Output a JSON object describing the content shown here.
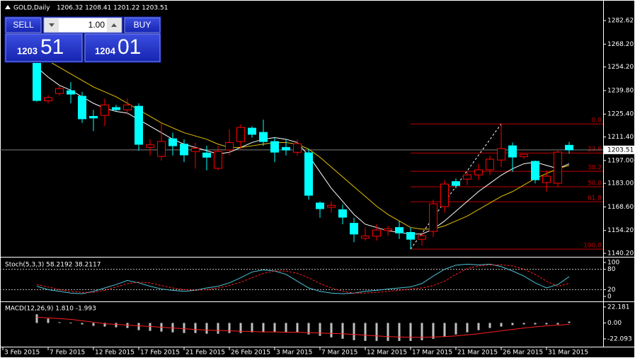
{
  "header": {
    "symbol": "GOLD,Daily",
    "ohlc": "1206.32 1208.41 1201.22 1203.51"
  },
  "trade_panel": {
    "sell": "SELL",
    "lots": "1.00",
    "buy": "BUY",
    "bid_big": "1203",
    "bid_small": "51",
    "ask_big": "1204",
    "ask_small": "01"
  },
  "chart_data": [
    {
      "type": "candlestick",
      "open": [
        1258.4,
        1233.5,
        1238,
        1239.7,
        1236.3,
        1224,
        1224.6,
        1229.4,
        1228,
        1230.2,
        1205,
        1199.5,
        1210.3,
        1207,
        1202.5,
        1201.6,
        1192.2,
        1203.4,
        1208.6,
        1216.8,
        1214.2,
        1208.6,
        1205,
        1202,
        1201.7,
        1171,
        1168.4,
        1166.9,
        1158.6,
        1149.4,
        1150.7,
        1154.1,
        1156,
        1153,
        1148.8,
        1153.6,
        1168.8,
        1184.1,
        1185.6,
        1188.2,
        1191.3,
        1197.3,
        1206,
        1199.4,
        1196.5,
        1183.5,
        1183.1,
        1206.32
      ],
      "high": [
        1260,
        1237,
        1243,
        1245,
        1239,
        1228,
        1235,
        1231,
        1235,
        1232,
        1210,
        1220,
        1214,
        1210,
        1208,
        1206,
        1206,
        1216,
        1219,
        1218,
        1222,
        1211,
        1210,
        1210,
        1204,
        1172,
        1172,
        1170,
        1162,
        1156,
        1158,
        1157,
        1160,
        1156,
        1153,
        1173,
        1185,
        1186,
        1190,
        1195,
        1200,
        1219.4,
        1208,
        1201,
        1197,
        1191,
        1203,
        1208.41
      ],
      "low": [
        1233,
        1232,
        1237,
        1232,
        1220,
        1215,
        1218,
        1227,
        1225,
        1203,
        1200,
        1197,
        1200,
        1196,
        1192,
        1191,
        1191,
        1200,
        1204,
        1211,
        1206,
        1196,
        1200,
        1200,
        1173,
        1162,
        1165,
        1158,
        1147,
        1148,
        1148,
        1151,
        1149,
        1142.8,
        1145,
        1150,
        1165,
        1180,
        1182,
        1185,
        1188,
        1193,
        1190,
        1198,
        1183,
        1178,
        1181,
        1201.22
      ],
      "close": [
        1233.7,
        1235.5,
        1241,
        1237.6,
        1222.5,
        1223,
        1231,
        1228.1,
        1231,
        1206.9,
        1206.6,
        1208.6,
        1206,
        1200.4,
        1204.5,
        1199,
        1202.5,
        1208,
        1217.2,
        1213,
        1208.6,
        1202.1,
        1203.4,
        1207.3,
        1175.7,
        1167.5,
        1169.6,
        1162.3,
        1152,
        1150.8,
        1154.5,
        1155.2,
        1152.7,
        1148.8,
        1151,
        1170.5,
        1182.6,
        1181.7,
        1188.2,
        1191.3,
        1197.8,
        1204.3,
        1199.1,
        1200.8,
        1185.2,
        1187.4,
        1202.1,
        1203.51
      ],
      "up_color": "#ff0000",
      "down_color": "#00ffff",
      "series": [
        {
          "color": "#ffffff",
          "values": [
            1254,
            1248,
            1243,
            1240,
            1236,
            1232,
            1229,
            1227,
            1226,
            1222,
            1218,
            1214,
            1210,
            1207,
            1205,
            1203,
            1201,
            1202,
            1205,
            1208,
            1210,
            1211,
            1210,
            1208,
            1200,
            1190,
            1180,
            1172,
            1164,
            1158,
            1156,
            1154,
            1153,
            1152,
            1152,
            1155,
            1160,
            1166,
            1172,
            1178,
            1183,
            1188,
            1192,
            1195,
            1196,
            1194,
            1192,
            1195
          ]
        },
        {
          "color": "#e6c200",
          "values": [
            1262,
            1258,
            1254,
            1250,
            1246,
            1242,
            1239,
            1236,
            1232,
            1228,
            1224,
            1220,
            1217,
            1214,
            1212,
            1210,
            1207,
            1205,
            1205,
            1206,
            1207,
            1208,
            1208,
            1207,
            1204,
            1199,
            1193,
            1187,
            1181,
            1175,
            1169,
            1164,
            1160,
            1156,
            1155,
            1155,
            1157,
            1160,
            1163,
            1167,
            1171,
            1175,
            1178,
            1182,
            1186,
            1189,
            1192,
            1194
          ]
        }
      ],
      "ylim": [
        1138.5,
        1292.6
      ],
      "yticks": [
        {
          "value": 1282.62,
          "label": "1282.62"
        },
        {
          "value": 1268.2,
          "label": "1268.20"
        },
        {
          "value": 1254.2,
          "label": "1254.20"
        },
        {
          "value": 1239.8,
          "label": "1239.80"
        },
        {
          "value": 1225.4,
          "label": "1225.40"
        },
        {
          "value": 1211.4,
          "label": "1211.40"
        },
        {
          "value": 1197.0,
          "label": "1197.00"
        },
        {
          "value": 1183.0,
          "label": "1183.00"
        },
        {
          "value": 1168.6,
          "label": "1168.60"
        },
        {
          "value": 1154.2,
          "label": "1154.20"
        },
        {
          "value": 1140.2,
          "label": "1140.20"
        }
      ],
      "last_price": 1203.51,
      "fibo": {
        "color": "#c00000",
        "labels": [
          "0.0",
          "23.6",
          "38.2",
          "50.0",
          "61.8",
          "100.0"
        ],
        "prices": [
          1219.4,
          1201.6,
          1190.4,
          1180.9,
          1171.8,
          1142.8
        ]
      }
    },
    {
      "type": "line",
      "title": "Stoch(5,3,3) 58.2192 38.2117",
      "series": [
        {
          "color": "#4fc3d9",
          "dash": false,
          "values": [
            30,
            20,
            15,
            10,
            8,
            15,
            25,
            35,
            47,
            40,
            30,
            22,
            18,
            15,
            18,
            25,
            30,
            40,
            55,
            72,
            78,
            75,
            65,
            45,
            25,
            15,
            10,
            8,
            10,
            15,
            18,
            22,
            25,
            28,
            38,
            60,
            80,
            92,
            95,
            93,
            95,
            88,
            75,
            60,
            40,
            25,
            35,
            58.2192
          ]
        },
        {
          "color": "#ff2020",
          "dash": true,
          "values": [
            35,
            28,
            20,
            15,
            12,
            12,
            18,
            28,
            38,
            42,
            40,
            32,
            25,
            20,
            18,
            20,
            25,
            32,
            42,
            55,
            68,
            75,
            75,
            68,
            55,
            38,
            25,
            15,
            10,
            10,
            12,
            15,
            18,
            22,
            25,
            32,
            45,
            65,
            82,
            90,
            93,
            93,
            90,
            80,
            65,
            45,
            30,
            38.2117
          ]
        }
      ],
      "ylim": [
        0,
        100
      ],
      "yticks": [
        100,
        80,
        20,
        0
      ],
      "levels": [
        80,
        20
      ]
    },
    {
      "type": "bar",
      "title": "MACD(12,26,9) 1.810 -1.993",
      "series": [
        {
          "type": "bar",
          "color": "#c0c0c0",
          "values": [
            12,
            6,
            1,
            0.5,
            -2,
            -4,
            -5,
            -6,
            -7,
            -10,
            -11,
            -12,
            -13,
            -14,
            -14,
            -15,
            -15,
            -14,
            -14,
            -13,
            -13,
            -13,
            -13,
            -13,
            -16,
            -18,
            -20,
            -22,
            -24,
            -25,
            -25,
            -25,
            -25,
            -25,
            -24,
            -22,
            -19,
            -16,
            -13,
            -10,
            -7,
            -5,
            -3,
            -2,
            -2,
            -2,
            -2,
            1.81
          ]
        },
        {
          "type": "line",
          "color": "#ff2020",
          "values": [
            8,
            7,
            6,
            5,
            3,
            1,
            -1,
            -2,
            -3,
            -4,
            -5,
            -6,
            -7,
            -8,
            -9,
            -10,
            -10.5,
            -11,
            -11.5,
            -12,
            -12.5,
            -12.5,
            -13,
            -13,
            -13.5,
            -14,
            -14.5,
            -15,
            -16,
            -17,
            -18,
            -19,
            -19.5,
            -20,
            -20,
            -19.5,
            -19,
            -18,
            -16.5,
            -15,
            -13,
            -11,
            -9,
            -7,
            -5.5,
            -4,
            -3,
            -1.993
          ]
        }
      ],
      "ylim": [
        -33,
        28
      ],
      "yticks": [
        {
          "value": 22.181,
          "label": "22.181"
        },
        {
          "value": 0,
          "label": "0.00"
        },
        {
          "value": -22.093,
          "label": "-22.093"
        }
      ],
      "xticks": [
        {
          "value": -3,
          "label": "3 Feb 2015"
        },
        {
          "value": 1,
          "label": "7 Feb 2015"
        },
        {
          "value": 5,
          "label": "12 Feb 2015"
        },
        {
          "value": 9,
          "label": "17 Feb 2015"
        },
        {
          "value": 13,
          "label": "21 Feb 2015"
        },
        {
          "value": 17,
          "label": "26 Feb 2015"
        },
        {
          "value": 21,
          "label": "3 Mar 2015"
        },
        {
          "value": 25,
          "label": "7 Mar 2015"
        },
        {
          "value": 29,
          "label": "12 Mar 2015"
        },
        {
          "value": 33,
          "label": "17 Mar 2015"
        },
        {
          "value": 37,
          "label": "21 Mar 2015"
        },
        {
          "value": 41,
          "label": "26 Mar 2015"
        },
        {
          "value": 45,
          "label": "31 Mar 2015"
        }
      ]
    }
  ]
}
